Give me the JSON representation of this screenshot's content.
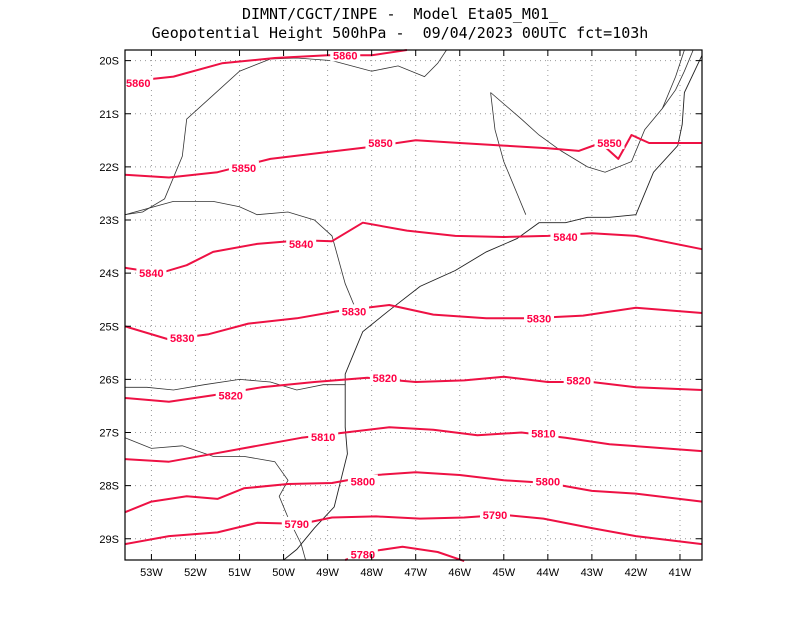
{
  "title": {
    "line1": "DIMNT/CGCT/INPE -  Model Eta05_M01_",
    "line2": "Geopotential Height 500hPa -  09/04/2023 00UTC fct=103h"
  },
  "map": {
    "lon_range": [
      -53.6,
      -40.5
    ],
    "lat_range": [
      -29.4,
      -19.8
    ],
    "lon_ticks": [
      {
        "value": -53,
        "label": "53W"
      },
      {
        "value": -52,
        "label": "52W"
      },
      {
        "value": -51,
        "label": "51W"
      },
      {
        "value": -50,
        "label": "50W"
      },
      {
        "value": -49,
        "label": "49W"
      },
      {
        "value": -48,
        "label": "48W"
      },
      {
        "value": -47,
        "label": "47W"
      },
      {
        "value": -46,
        "label": "46W"
      },
      {
        "value": -45,
        "label": "45W"
      },
      {
        "value": -44,
        "label": "44W"
      },
      {
        "value": -43,
        "label": "43W"
      },
      {
        "value": -42,
        "label": "42W"
      },
      {
        "value": -41,
        "label": "41W"
      }
    ],
    "lat_ticks": [
      {
        "value": -20,
        "label": "20S"
      },
      {
        "value": -21,
        "label": "21S"
      },
      {
        "value": -22,
        "label": "22S"
      },
      {
        "value": -23,
        "label": "23S"
      },
      {
        "value": -24,
        "label": "24S"
      },
      {
        "value": -25,
        "label": "25S"
      },
      {
        "value": -26,
        "label": "26S"
      },
      {
        "value": -27,
        "label": "27S"
      },
      {
        "value": -28,
        "label": "28S"
      },
      {
        "value": -29,
        "label": "29S"
      }
    ]
  },
  "contours": [
    {
      "level": "5860",
      "points": [
        [
          -53.6,
          -20.4
        ],
        [
          -52.5,
          -20.3
        ],
        [
          -51.4,
          -20.05
        ],
        [
          -50.2,
          -19.95
        ],
        [
          -49.0,
          -19.9
        ],
        [
          -48.0,
          -19.9
        ],
        [
          -47.2,
          -19.8
        ]
      ],
      "labels": [
        {
          "lon": -53.3,
          "lat": -20.42
        },
        {
          "lon": -48.6,
          "lat": -19.9
        }
      ]
    },
    {
      "level": "5850",
      "points": [
        [
          -53.6,
          -22.15
        ],
        [
          -52.6,
          -22.2
        ],
        [
          -51.5,
          -22.1
        ],
        [
          -50.3,
          -21.85
        ],
        [
          -49.0,
          -21.72
        ],
        [
          -48.0,
          -21.62
        ],
        [
          -47.0,
          -21.5
        ],
        [
          -46.0,
          -21.55
        ],
        [
          -45.0,
          -21.6
        ],
        [
          -44.0,
          -21.65
        ],
        [
          -43.3,
          -21.7
        ],
        [
          -42.8,
          -21.55
        ],
        [
          -42.4,
          -21.85
        ],
        [
          -42.1,
          -21.4
        ],
        [
          -41.7,
          -21.55
        ],
        [
          -40.5,
          -21.55
        ]
      ],
      "labels": [
        {
          "lon": -50.9,
          "lat": -22.02
        },
        {
          "lon": -47.8,
          "lat": -21.55
        },
        {
          "lon": -42.6,
          "lat": -21.55
        }
      ]
    },
    {
      "level": "5840",
      "points": [
        [
          -53.6,
          -23.9
        ],
        [
          -52.8,
          -24.0
        ],
        [
          -52.2,
          -23.85
        ],
        [
          -51.6,
          -23.6
        ],
        [
          -50.6,
          -23.45
        ],
        [
          -49.6,
          -23.38
        ],
        [
          -48.9,
          -23.4
        ],
        [
          -48.2,
          -23.05
        ],
        [
          -47.2,
          -23.2
        ],
        [
          -46.1,
          -23.3
        ],
        [
          -45.0,
          -23.32
        ],
        [
          -44.0,
          -23.3
        ],
        [
          -43.0,
          -23.25
        ],
        [
          -42.0,
          -23.3
        ],
        [
          -40.5,
          -23.55
        ]
      ],
      "labels": [
        {
          "lon": -53.0,
          "lat": -24.0
        },
        {
          "lon": -49.6,
          "lat": -23.45
        },
        {
          "lon": -43.6,
          "lat": -23.32
        }
      ]
    },
    {
      "level": "5830",
      "points": [
        [
          -53.6,
          -25.0
        ],
        [
          -52.6,
          -25.25
        ],
        [
          -51.7,
          -25.15
        ],
        [
          -50.8,
          -24.95
        ],
        [
          -49.7,
          -24.85
        ],
        [
          -48.8,
          -24.72
        ],
        [
          -47.6,
          -24.6
        ],
        [
          -46.6,
          -24.78
        ],
        [
          -45.4,
          -24.85
        ],
        [
          -44.4,
          -24.85
        ],
        [
          -43.2,
          -24.8
        ],
        [
          -42.0,
          -24.65
        ],
        [
          -40.5,
          -24.75
        ]
      ],
      "labels": [
        {
          "lon": -52.3,
          "lat": -25.22
        },
        {
          "lon": -48.4,
          "lat": -24.72
        },
        {
          "lon": -44.2,
          "lat": -24.85
        }
      ]
    },
    {
      "level": "5820",
      "points": [
        [
          -53.6,
          -26.35
        ],
        [
          -52.6,
          -26.42
        ],
        [
          -51.6,
          -26.3
        ],
        [
          -50.5,
          -26.15
        ],
        [
          -49.3,
          -26.05
        ],
        [
          -48.1,
          -25.97
        ],
        [
          -47.0,
          -26.05
        ],
        [
          -45.9,
          -26.02
        ],
        [
          -45.0,
          -25.95
        ],
        [
          -44.0,
          -26.05
        ],
        [
          -43.0,
          -26.05
        ],
        [
          -42.0,
          -26.15
        ],
        [
          -40.5,
          -26.2
        ]
      ],
      "labels": [
        {
          "lon": -51.2,
          "lat": -26.3
        },
        {
          "lon": -47.7,
          "lat": -25.97
        },
        {
          "lon": -43.3,
          "lat": -26.02
        }
      ]
    },
    {
      "level": "5810",
      "points": [
        [
          -53.6,
          -27.5
        ],
        [
          -52.6,
          -27.55
        ],
        [
          -51.6,
          -27.4
        ],
        [
          -50.6,
          -27.25
        ],
        [
          -49.6,
          -27.1
        ],
        [
          -48.6,
          -27.0
        ],
        [
          -47.6,
          -26.9
        ],
        [
          -46.6,
          -26.95
        ],
        [
          -45.6,
          -27.05
        ],
        [
          -44.6,
          -27.0
        ],
        [
          -43.6,
          -27.1
        ],
        [
          -42.6,
          -27.22
        ],
        [
          -40.5,
          -27.35
        ]
      ],
      "labels": [
        {
          "lon": -49.1,
          "lat": -27.08
        },
        {
          "lon": -44.1,
          "lat": -27.02
        }
      ]
    },
    {
      "level": "5800",
      "points": [
        [
          -53.6,
          -28.5
        ],
        [
          -53.0,
          -28.3
        ],
        [
          -52.2,
          -28.2
        ],
        [
          -51.5,
          -28.25
        ],
        [
          -50.9,
          -28.05
        ],
        [
          -49.9,
          -27.97
        ],
        [
          -48.9,
          -27.95
        ],
        [
          -47.9,
          -27.8
        ],
        [
          -47.0,
          -27.75
        ],
        [
          -46.0,
          -27.8
        ],
        [
          -45.0,
          -27.9
        ],
        [
          -44.0,
          -27.95
        ],
        [
          -43.0,
          -28.1
        ],
        [
          -42.0,
          -28.15
        ],
        [
          -40.5,
          -28.3
        ]
      ],
      "labels": [
        {
          "lon": -48.2,
          "lat": -27.92
        },
        {
          "lon": -44.0,
          "lat": -27.92
        }
      ]
    },
    {
      "level": "5790",
      "points": [
        [
          -53.6,
          -29.1
        ],
        [
          -52.6,
          -28.95
        ],
        [
          -51.5,
          -28.88
        ],
        [
          -50.6,
          -28.7
        ],
        [
          -49.6,
          -28.72
        ],
        [
          -48.9,
          -28.6
        ],
        [
          -47.9,
          -28.58
        ],
        [
          -46.9,
          -28.62
        ],
        [
          -45.9,
          -28.6
        ],
        [
          -45.0,
          -28.55
        ],
        [
          -44.1,
          -28.62
        ],
        [
          -43.0,
          -28.8
        ],
        [
          -42.0,
          -28.95
        ],
        [
          -40.5,
          -29.1
        ]
      ],
      "labels": [
        {
          "lon": -49.7,
          "lat": -28.72
        },
        {
          "lon": -45.2,
          "lat": -28.55
        }
      ]
    },
    {
      "level": "5780",
      "points": [
        [
          -48.6,
          -29.4
        ],
        [
          -48.1,
          -29.25
        ],
        [
          -47.3,
          -29.15
        ],
        [
          -46.5,
          -29.25
        ],
        [
          -45.9,
          -29.42
        ]
      ],
      "labels": [
        {
          "lon": -48.2,
          "lat": -29.3
        }
      ]
    }
  ],
  "boundaries": [
    [
      [
        -46.3,
        -19.8
      ],
      [
        -46.5,
        -20.05
      ],
      [
        -46.8,
        -20.3
      ],
      [
        -47.4,
        -20.1
      ],
      [
        -48.0,
        -20.2
      ],
      [
        -48.9,
        -20.0
      ],
      [
        -49.7,
        -19.95
      ],
      [
        -50.3,
        -19.97
      ],
      [
        -51.0,
        -20.2
      ],
      [
        -51.6,
        -20.65
      ],
      [
        -52.2,
        -21.1
      ],
      [
        -52.3,
        -21.8
      ],
      [
        -52.7,
        -22.6
      ],
      [
        -53.2,
        -22.85
      ],
      [
        -53.6,
        -22.9
      ]
    ],
    [
      [
        -53.6,
        -22.9
      ],
      [
        -52.5,
        -22.65
      ],
      [
        -51.6,
        -22.65
      ],
      [
        -51.0,
        -22.75
      ],
      [
        -50.6,
        -22.9
      ],
      [
        -49.9,
        -22.85
      ],
      [
        -49.3,
        -23.0
      ],
      [
        -48.9,
        -23.3
      ],
      [
        -48.6,
        -24.2
      ],
      [
        -48.4,
        -24.6
      ]
    ],
    [
      [
        -53.6,
        -26.15
      ],
      [
        -53.1,
        -26.15
      ],
      [
        -52.5,
        -26.2
      ],
      [
        -51.8,
        -26.1
      ],
      [
        -51.0,
        -26.0
      ],
      [
        -50.3,
        -26.05
      ],
      [
        -49.7,
        -26.2
      ],
      [
        -49.1,
        -26.1
      ],
      [
        -48.6,
        -26.1
      ]
    ],
    [
      [
        -53.6,
        -27.1
      ],
      [
        -53.0,
        -27.3
      ],
      [
        -52.3,
        -27.25
      ],
      [
        -51.6,
        -27.45
      ],
      [
        -50.9,
        -27.45
      ],
      [
        -50.2,
        -27.55
      ],
      [
        -49.9,
        -27.9
      ],
      [
        -50.1,
        -28.2
      ],
      [
        -49.9,
        -28.6
      ],
      [
        -49.6,
        -29.1
      ],
      [
        -49.5,
        -29.4
      ]
    ],
    [
      [
        -45.3,
        -20.6
      ],
      [
        -44.6,
        -21.1
      ],
      [
        -44.2,
        -21.4
      ],
      [
        -43.7,
        -21.7
      ],
      [
        -43.1,
        -22.0
      ],
      [
        -42.7,
        -22.1
      ],
      [
        -42.1,
        -21.9
      ],
      [
        -41.8,
        -21.3
      ],
      [
        -41.4,
        -20.9
      ],
      [
        -41.1,
        -20.3
      ],
      [
        -40.9,
        -19.8
      ]
    ],
    [
      [
        -45.3,
        -20.6
      ],
      [
        -45.2,
        -21.3
      ],
      [
        -45.0,
        -21.9
      ],
      [
        -44.7,
        -22.5
      ],
      [
        -44.5,
        -22.9
      ]
    ],
    [
      [
        -41.4,
        -20.9
      ],
      [
        -41.1,
        -20.55
      ],
      [
        -40.9,
        -20.2
      ],
      [
        -40.7,
        -19.8
      ]
    ]
  ],
  "coastline": [
    [
      -40.5,
      -19.9
    ],
    [
      -40.9,
      -20.6
    ],
    [
      -40.95,
      -21.2
    ],
    [
      -41.05,
      -21.6
    ],
    [
      -41.6,
      -22.1
    ],
    [
      -42.0,
      -22.9
    ],
    [
      -42.6,
      -22.95
    ],
    [
      -43.1,
      -22.95
    ],
    [
      -43.6,
      -23.05
    ],
    [
      -44.2,
      -23.05
    ],
    [
      -44.7,
      -23.35
    ],
    [
      -45.4,
      -23.6
    ],
    [
      -46.1,
      -23.95
    ],
    [
      -46.9,
      -24.25
    ],
    [
      -47.6,
      -24.7
    ],
    [
      -48.2,
      -25.1
    ],
    [
      -48.4,
      -25.5
    ],
    [
      -48.6,
      -25.9
    ],
    [
      -48.6,
      -26.4
    ],
    [
      -48.6,
      -26.9
    ],
    [
      -48.55,
      -27.4
    ],
    [
      -48.7,
      -27.9
    ],
    [
      -48.85,
      -28.4
    ],
    [
      -49.3,
      -28.8
    ],
    [
      -49.7,
      -29.2
    ],
    [
      -50.0,
      -29.4
    ]
  ]
}
